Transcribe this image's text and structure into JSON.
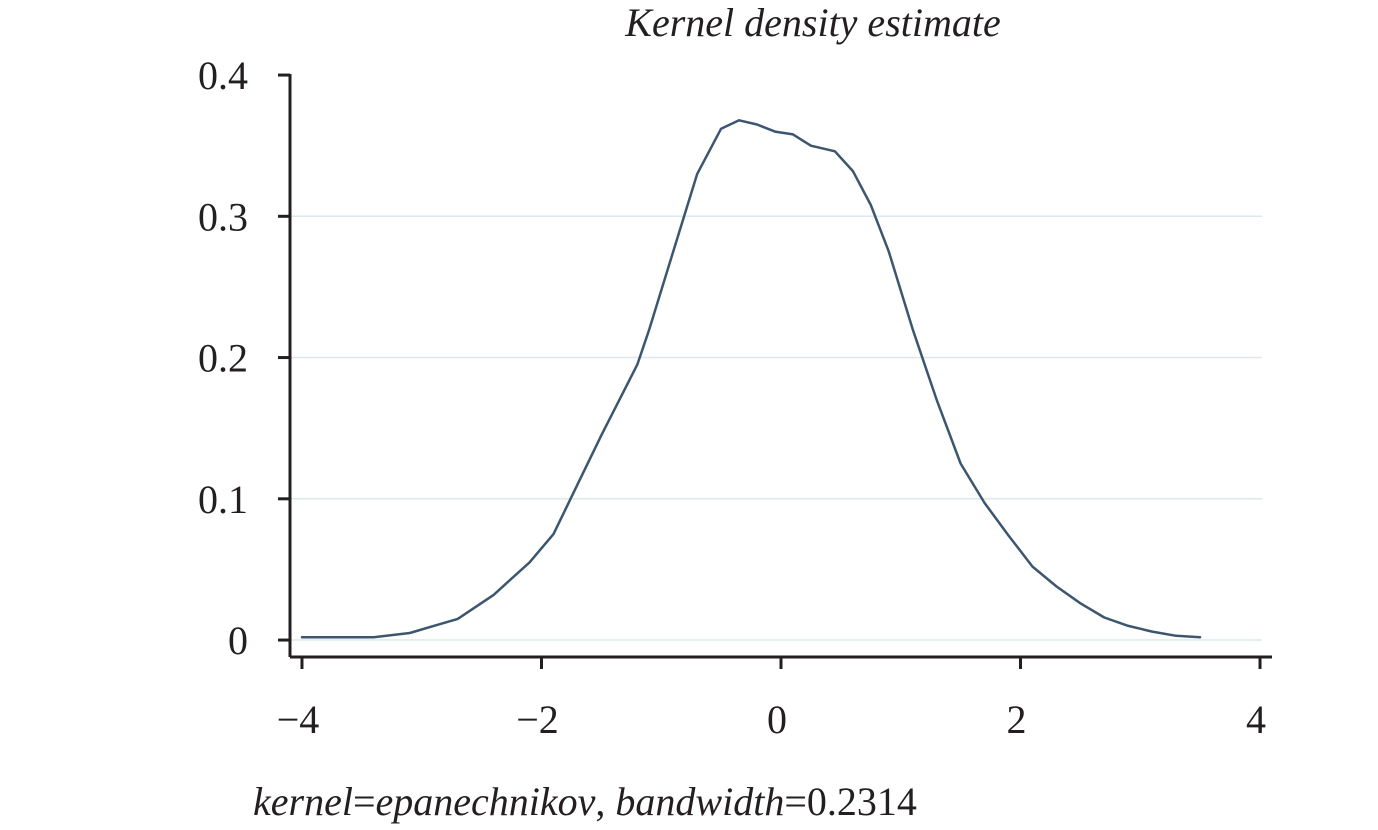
{
  "chart_data": {
    "type": "line",
    "title": "Kernel density estimate",
    "xlabel": "",
    "ylabel": "",
    "xlim": [
      -4.1,
      4.1
    ],
    "ylim": [
      -0.012,
      0.405
    ],
    "x_ticks": [
      -4,
      -2,
      0,
      2,
      4
    ],
    "x_tick_labels": [
      "−4",
      "−2",
      "0",
      "2",
      "4"
    ],
    "y_ticks": [
      0,
      0.1,
      0.2,
      0.3,
      0.4
    ],
    "y_tick_labels": [
      "0",
      "0.1",
      "0.2",
      "0.3",
      "0.4"
    ],
    "grid": {
      "horizontal": true,
      "values": [
        0,
        0.1,
        0.2,
        0.3
      ]
    },
    "colors": {
      "line": "#3d5670",
      "axis": "#231f20",
      "grid": "#dde8ec"
    },
    "note": {
      "kernel_label": "kernel",
      "kernel_value": "epanechnikov",
      "separator": ", ",
      "bandwidth_label": "bandwidth",
      "bandwidth_value": "0.2314"
    },
    "series": [
      {
        "x": [
          -4.0,
          -3.7,
          -3.4,
          -3.1,
          -2.9,
          -2.7,
          -2.4,
          -2.1,
          -1.9,
          -1.7,
          -1.5,
          -1.2,
          -1.1,
          -0.9,
          -0.7,
          -0.5,
          -0.35,
          -0.2,
          -0.05,
          0.1,
          0.25,
          0.45,
          0.6,
          0.75,
          0.9,
          1.1,
          1.3,
          1.5,
          1.7,
          1.9,
          2.1,
          2.3,
          2.5,
          2.7,
          2.9,
          3.1,
          3.3,
          3.5
        ],
        "y": [
          0.002,
          0.002,
          0.002,
          0.005,
          0.01,
          0.015,
          0.032,
          0.055,
          0.075,
          0.11,
          0.145,
          0.195,
          0.22,
          0.275,
          0.33,
          0.362,
          0.368,
          0.365,
          0.36,
          0.358,
          0.35,
          0.346,
          0.332,
          0.308,
          0.275,
          0.22,
          0.17,
          0.125,
          0.097,
          0.074,
          0.052,
          0.038,
          0.026,
          0.016,
          0.01,
          0.006,
          0.003,
          0.002
        ]
      }
    ]
  }
}
